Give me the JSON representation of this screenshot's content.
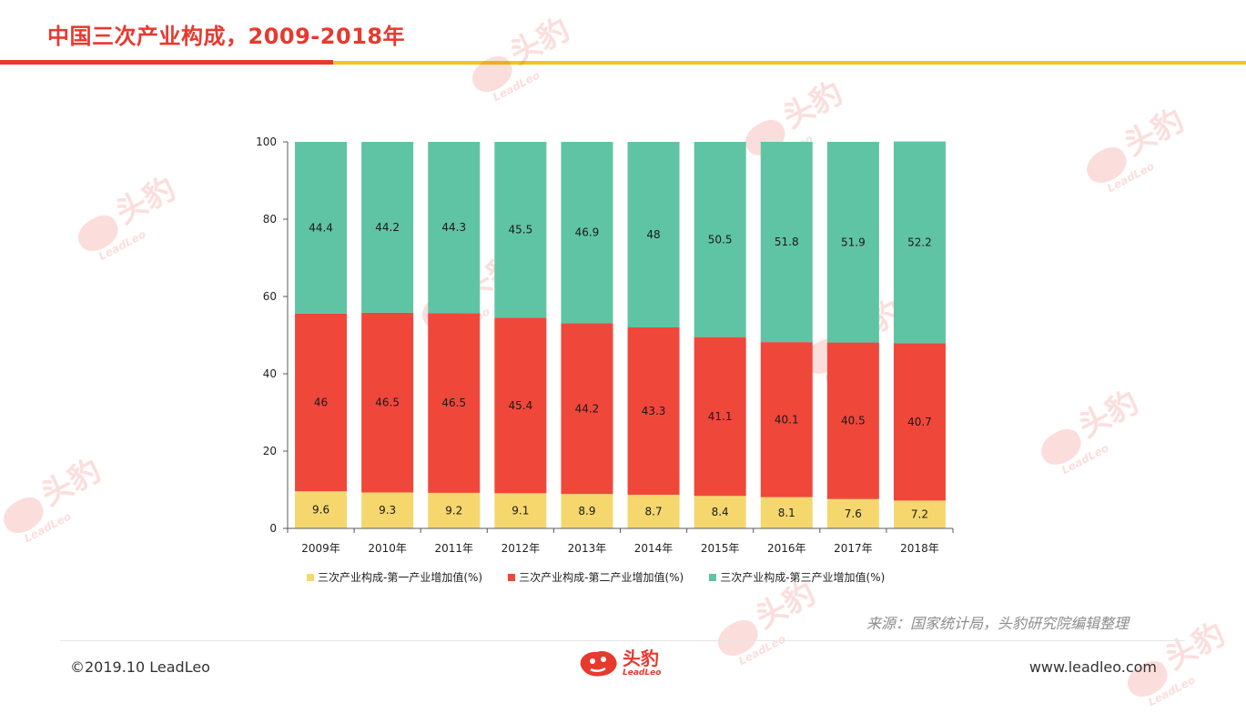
{
  "header": {
    "title": "中国三次产业构成，2009-2018年"
  },
  "colors": {
    "accent_red": "#e8392f",
    "accent_yellow": "#f7c21b",
    "primary": "#f5d76e",
    "secondary": "#f0473b",
    "tertiary": "#5fc4a4"
  },
  "chart_data": {
    "type": "bar",
    "stacked": true,
    "categories": [
      "2009年",
      "2010年",
      "2011年",
      "2012年",
      "2013年",
      "2014年",
      "2015年",
      "2016年",
      "2017年",
      "2018年"
    ],
    "series": [
      {
        "name": "三次产业构成-第一产业增加值(%)",
        "values": [
          9.6,
          9.3,
          9.2,
          9.1,
          8.9,
          8.7,
          8.4,
          8.1,
          7.6,
          7.2
        ],
        "labels": [
          "9.6",
          "9.3",
          "9.2",
          "9.1",
          "8.9",
          "8.7",
          "8.4",
          "8.1",
          "7.6",
          "7.2"
        ],
        "color": "#f5d76e"
      },
      {
        "name": "三次产业构成-第二产业增加值(%)",
        "values": [
          46,
          46.5,
          46.5,
          45.4,
          44.2,
          43.3,
          41.1,
          40.1,
          40.5,
          40.7
        ],
        "labels": [
          "46",
          "46.5",
          "46.5",
          "45.4",
          "44.2",
          "43.3",
          "41.1",
          "40.1",
          "40.5",
          "40.7"
        ],
        "color": "#f0473b"
      },
      {
        "name": "三次产业构成-第三产业增加值(%)",
        "values": [
          44.4,
          44.2,
          44.3,
          45.5,
          46.9,
          48,
          50.5,
          51.8,
          51.9,
          52.2
        ],
        "labels": [
          "44.4",
          "44.2",
          "44.3",
          "45.5",
          "46.9",
          "48",
          "50.5",
          "51.8",
          "51.9",
          "52.2"
        ],
        "color": "#5fc4a4"
      }
    ],
    "yticks": [
      "0",
      "20",
      "40",
      "60",
      "80",
      "100"
    ],
    "ylim": [
      0,
      100
    ],
    "legend_position": "bottom"
  },
  "source": {
    "text": "来源：国家统计局，头豹研究院编辑整理"
  },
  "footer": {
    "copyright": "©2019.10 LeadLeo",
    "website": "www.leadleo.com",
    "logo_cn": "头豹",
    "logo_en": "LeadLeo"
  },
  "watermark": {
    "cn": "头豹",
    "en": "LeadLeo"
  }
}
